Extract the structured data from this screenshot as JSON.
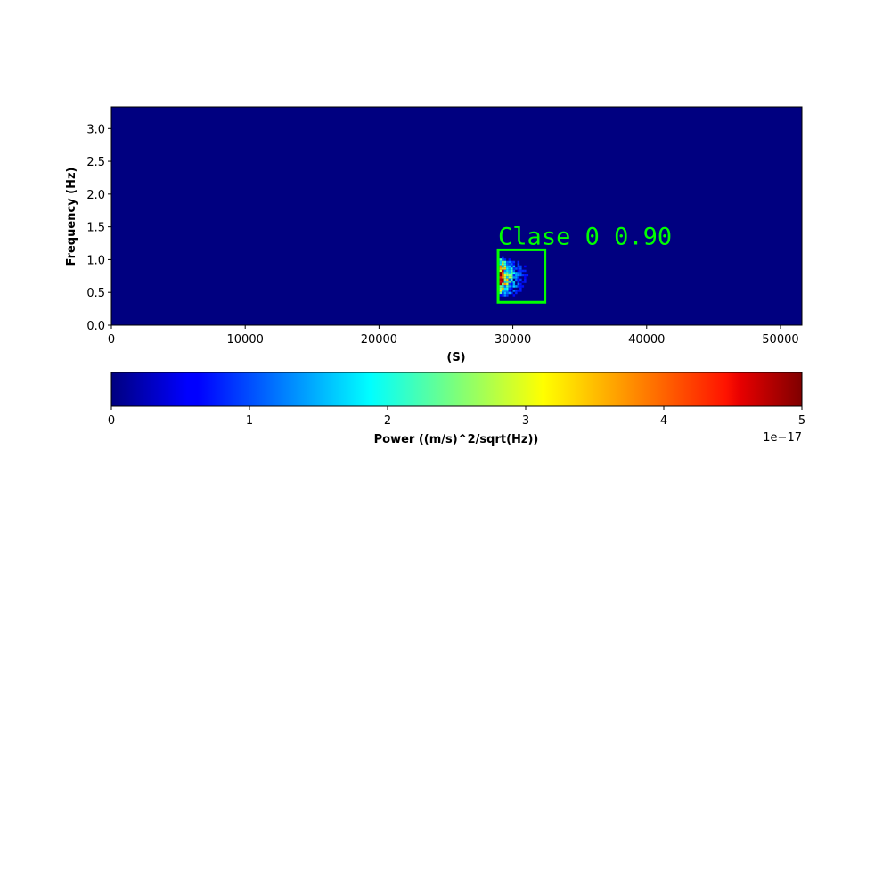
{
  "chart_data": [
    {
      "type": "heatmap",
      "xlabel": "(S)",
      "ylabel": "Frequency (Hz)",
      "xlim": [
        0,
        51600
      ],
      "ylim": [
        0,
        3.33
      ],
      "x_ticks": [
        0,
        10000,
        20000,
        30000,
        40000,
        50000
      ],
      "x_tick_labels": [
        "0",
        "10000",
        "20000",
        "30000",
        "40000",
        "50000"
      ],
      "y_ticks": [
        0.0,
        0.5,
        1.0,
        1.5,
        2.0,
        2.5,
        3.0
      ],
      "y_tick_labels": [
        "0.0",
        "0.5",
        "1.0",
        "1.5",
        "2.0",
        "2.5",
        "3.0"
      ],
      "background_level": 0.0,
      "event": {
        "time_range": [
          29000,
          32000
        ],
        "freq_range": [
          0.45,
          1.05
        ],
        "peak_power_e17": 5
      },
      "detection": {
        "label": "Clase 0 0.90",
        "color": "#00ff00",
        "x_range": [
          28900,
          32400
        ],
        "y_range": [
          0.35,
          1.15
        ]
      },
      "colormap": "jet"
    },
    {
      "type": "colorbar",
      "label": "Power ((m/s)^2/sqrt(Hz))",
      "range": [
        0,
        5
      ],
      "ticks": [
        0,
        1,
        2,
        3,
        4,
        5
      ],
      "tick_labels": [
        "0",
        "1",
        "2",
        "3",
        "4",
        "5"
      ],
      "offset_text": "1e−17",
      "colormap": "jet"
    }
  ]
}
